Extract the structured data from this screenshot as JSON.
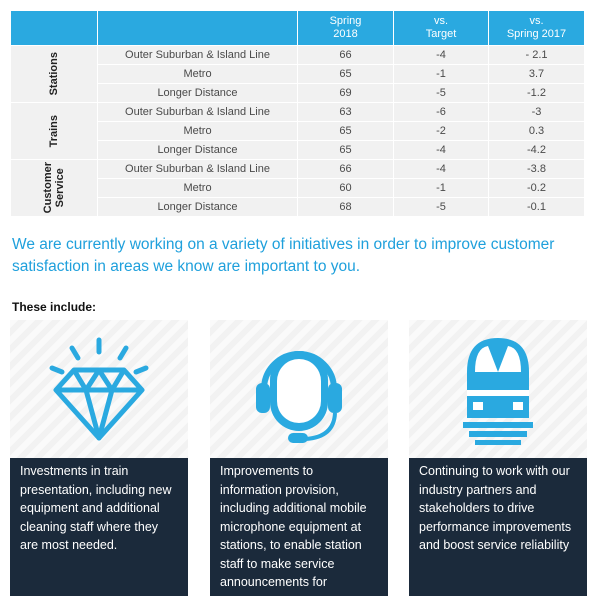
{
  "table": {
    "header": [
      "Spring\n2018",
      "vs.\nTarget",
      "vs.\nSpring 2017"
    ],
    "groups": [
      {
        "label": "Stations",
        "rows": [
          {
            "label": "Outer Suburban & Island Line",
            "values": [
              "66",
              "-4",
              "- 2.1"
            ]
          },
          {
            "label": "Metro",
            "values": [
              "65",
              "-1",
              "3.7"
            ]
          },
          {
            "label": "Longer Distance",
            "values": [
              "69",
              "-5",
              "-1.2"
            ]
          }
        ]
      },
      {
        "label": "Trains",
        "rows": [
          {
            "label": "Outer Suburban & Island Line",
            "values": [
              "63",
              "-6",
              "-3"
            ]
          },
          {
            "label": "Metro",
            "values": [
              "65",
              "-2",
              "0.3"
            ]
          },
          {
            "label": "Longer Distance",
            "values": [
              "65",
              "-4",
              "-4.2"
            ]
          }
        ]
      },
      {
        "label": "Customer\nService",
        "rows": [
          {
            "label": "Outer Suburban & Island Line",
            "values": [
              "66",
              "-4",
              "-3.8"
            ]
          },
          {
            "label": "Metro",
            "values": [
              "60",
              "-1",
              "-0.2"
            ]
          },
          {
            "label": "Longer Distance",
            "values": [
              "68",
              "-5",
              "-0.1"
            ]
          }
        ]
      }
    ]
  },
  "intro": "We are currently working on a variety of initiatives in order to improve customer satisfaction in areas we know are important to you.",
  "list_heading": "These include:",
  "cards": [
    "Investments in train presentation, including new equipment and additional cleaning staff where they are most needed.",
    "Improvements to information provision, including additional mobile microphone equipment at stations, to enable station staff to make service announcements for customers.",
    "Continuing to work with our industry partners and stakeholders to drive performance improvements and boost service reliability"
  ]
}
